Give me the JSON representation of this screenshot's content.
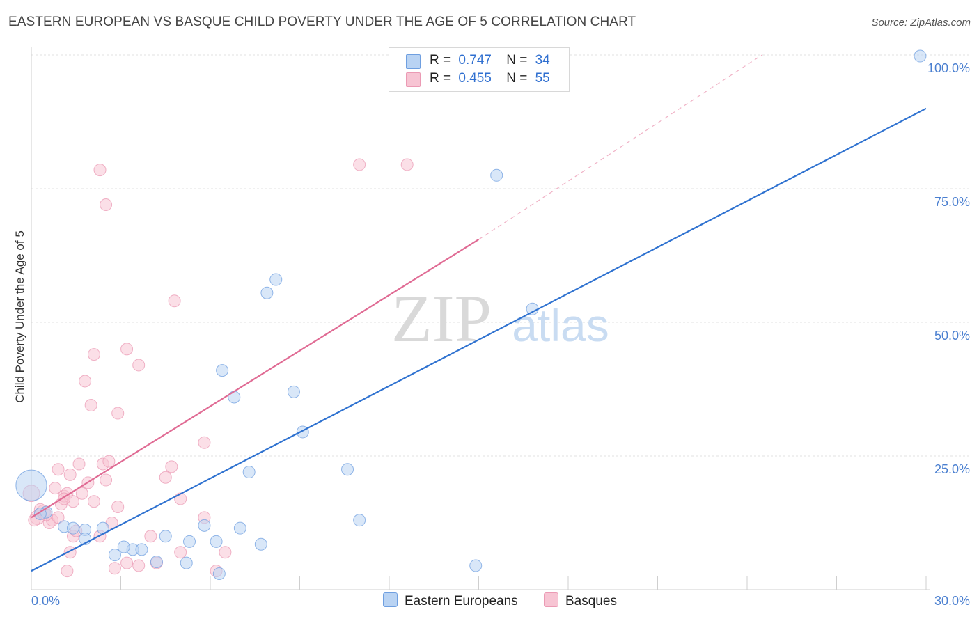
{
  "header": {
    "title": "EASTERN EUROPEAN VS BASQUE CHILD POVERTY UNDER THE AGE OF 5 CORRELATION CHART",
    "source": "Source: ZipAtlas.com"
  },
  "colors": {
    "blue": "#2f72d0",
    "blue_fill": "#b9d3f3",
    "pink": "#e06b94",
    "pink_fill": "#f7c4d3",
    "grid": "#e2e2e2"
  },
  "legend": {
    "blue": {
      "r_label": "R =",
      "r_value": "0.747",
      "n_label": "N =",
      "n_value": "34"
    },
    "pink": {
      "r_label": "R =",
      "r_value": "0.455",
      "n_label": "N =",
      "n_value": "55"
    }
  },
  "bottom_legend": {
    "blue_label": "Eastern Europeans",
    "pink_label": "Basques"
  },
  "watermark": {
    "zip": "ZIP",
    "atlas": "atlas"
  },
  "chart_data": {
    "type": "scatter",
    "title": "EASTERN EUROPEAN VS BASQUE CHILD POVERTY UNDER THE AGE OF 5 CORRELATION CHART",
    "xlabel": "",
    "ylabel": "Child Poverty Under the Age of 5",
    "xlim": [
      0,
      30
    ],
    "ylim": [
      0,
      100
    ],
    "x_tick_labels": [
      "0.0%",
      "30.0%"
    ],
    "y_tick_labels": [
      "25.0%",
      "50.0%",
      "75.0%",
      "100.0%"
    ],
    "y_ticks": [
      25,
      50,
      75,
      100
    ],
    "series": [
      {
        "name": "Eastern Europeans",
        "color": "blue",
        "R": 0.747,
        "N": 34,
        "trend": {
          "x": [
            0,
            30
          ],
          "y": [
            3.5,
            90
          ]
        },
        "points": [
          [
            0.0,
            19.5,
            2.6
          ],
          [
            0.5,
            14.5,
            1
          ],
          [
            0.3,
            14.2,
            1
          ],
          [
            1.1,
            11.8,
            1
          ],
          [
            1.4,
            11.5,
            1
          ],
          [
            1.8,
            11.2,
            1
          ],
          [
            2.4,
            11.5,
            1
          ],
          [
            1.8,
            9.5,
            1
          ],
          [
            3.4,
            7.5,
            1
          ],
          [
            3.1,
            8.0,
            1
          ],
          [
            3.7,
            7.5,
            1
          ],
          [
            4.2,
            5.2,
            1
          ],
          [
            4.5,
            10.0,
            1
          ],
          [
            5.3,
            9.0,
            1
          ],
          [
            5.8,
            12.0,
            1
          ],
          [
            6.3,
            3.0,
            1
          ],
          [
            5.2,
            5.0,
            1
          ],
          [
            7.0,
            11.5,
            1
          ],
          [
            7.7,
            8.5,
            1
          ],
          [
            6.2,
            9.0,
            1
          ],
          [
            6.4,
            41.0,
            1
          ],
          [
            6.8,
            36.0,
            1
          ],
          [
            7.3,
            22.0,
            1
          ],
          [
            7.9,
            55.5,
            1
          ],
          [
            8.2,
            58.0,
            1
          ],
          [
            8.8,
            37.0,
            1
          ],
          [
            9.1,
            29.5,
            1
          ],
          [
            10.6,
            22.5,
            1
          ],
          [
            11.0,
            13.0,
            1
          ],
          [
            14.9,
            4.5,
            1
          ],
          [
            15.6,
            77.5,
            1
          ],
          [
            16.8,
            52.5,
            1
          ],
          [
            29.8,
            99.8,
            1
          ],
          [
            2.8,
            6.5,
            1
          ]
        ]
      },
      {
        "name": "Basques",
        "color": "pink",
        "R": 0.455,
        "N": 55,
        "trend": {
          "x": [
            0,
            15
          ],
          "y": [
            13.5,
            65.5
          ]
        },
        "trend_dashed": {
          "x": [
            15,
            24.5
          ],
          "y": [
            65.5,
            100
          ]
        },
        "points": [
          [
            0.2,
            13.5,
            1.2
          ],
          [
            0.4,
            14.5,
            1.2
          ],
          [
            0.1,
            13.0,
            1
          ],
          [
            0.6,
            12.5,
            1
          ],
          [
            0.3,
            15.0,
            1
          ],
          [
            0.7,
            13.0,
            1
          ],
          [
            0.8,
            19.0,
            1
          ],
          [
            0.9,
            22.5,
            1
          ],
          [
            1.0,
            16.0,
            1
          ],
          [
            1.1,
            17.5,
            1
          ],
          [
            1.2,
            18.0,
            1
          ],
          [
            1.3,
            21.5,
            1
          ],
          [
            1.4,
            16.5,
            1
          ],
          [
            1.4,
            10.0,
            1
          ],
          [
            1.5,
            11.0,
            1
          ],
          [
            1.6,
            23.5,
            1
          ],
          [
            1.7,
            18.0,
            1
          ],
          [
            1.9,
            20.0,
            1
          ],
          [
            2.1,
            16.5,
            1
          ],
          [
            2.3,
            10.0,
            1
          ],
          [
            2.4,
            23.5,
            1
          ],
          [
            2.5,
            20.5,
            1
          ],
          [
            2.6,
            24.0,
            1
          ],
          [
            2.7,
            12.5,
            1
          ],
          [
            2.9,
            15.5,
            1
          ],
          [
            3.2,
            5.0,
            1
          ],
          [
            3.6,
            4.5,
            1
          ],
          [
            4.0,
            10.0,
            1
          ],
          [
            4.5,
            21.0,
            1
          ],
          [
            4.7,
            23.0,
            1
          ],
          [
            5.0,
            17.0,
            1
          ],
          [
            5.0,
            7.0,
            1
          ],
          [
            5.8,
            13.5,
            1
          ],
          [
            6.2,
            3.5,
            1
          ],
          [
            6.5,
            7.0,
            1
          ],
          [
            1.8,
            39.0,
            1
          ],
          [
            2.0,
            34.5,
            1
          ],
          [
            2.1,
            44.0,
            1
          ],
          [
            2.3,
            78.5,
            1
          ],
          [
            2.5,
            72.0,
            1
          ],
          [
            2.9,
            33.0,
            1
          ],
          [
            3.2,
            45.0,
            1
          ],
          [
            3.6,
            42.0,
            1
          ],
          [
            4.8,
            54.0,
            1
          ],
          [
            5.8,
            27.5,
            1
          ],
          [
            11.0,
            79.5,
            1
          ],
          [
            12.6,
            79.5,
            1
          ],
          [
            1.2,
            3.5,
            1
          ],
          [
            1.3,
            7.0,
            1
          ],
          [
            2.8,
            4.0,
            1
          ],
          [
            0.0,
            18.0,
            1.4
          ],
          [
            0.5,
            14.0,
            1
          ],
          [
            0.9,
            13.5,
            1
          ],
          [
            1.1,
            17.0,
            1
          ],
          [
            4.2,
            5.0,
            1
          ]
        ]
      }
    ]
  }
}
